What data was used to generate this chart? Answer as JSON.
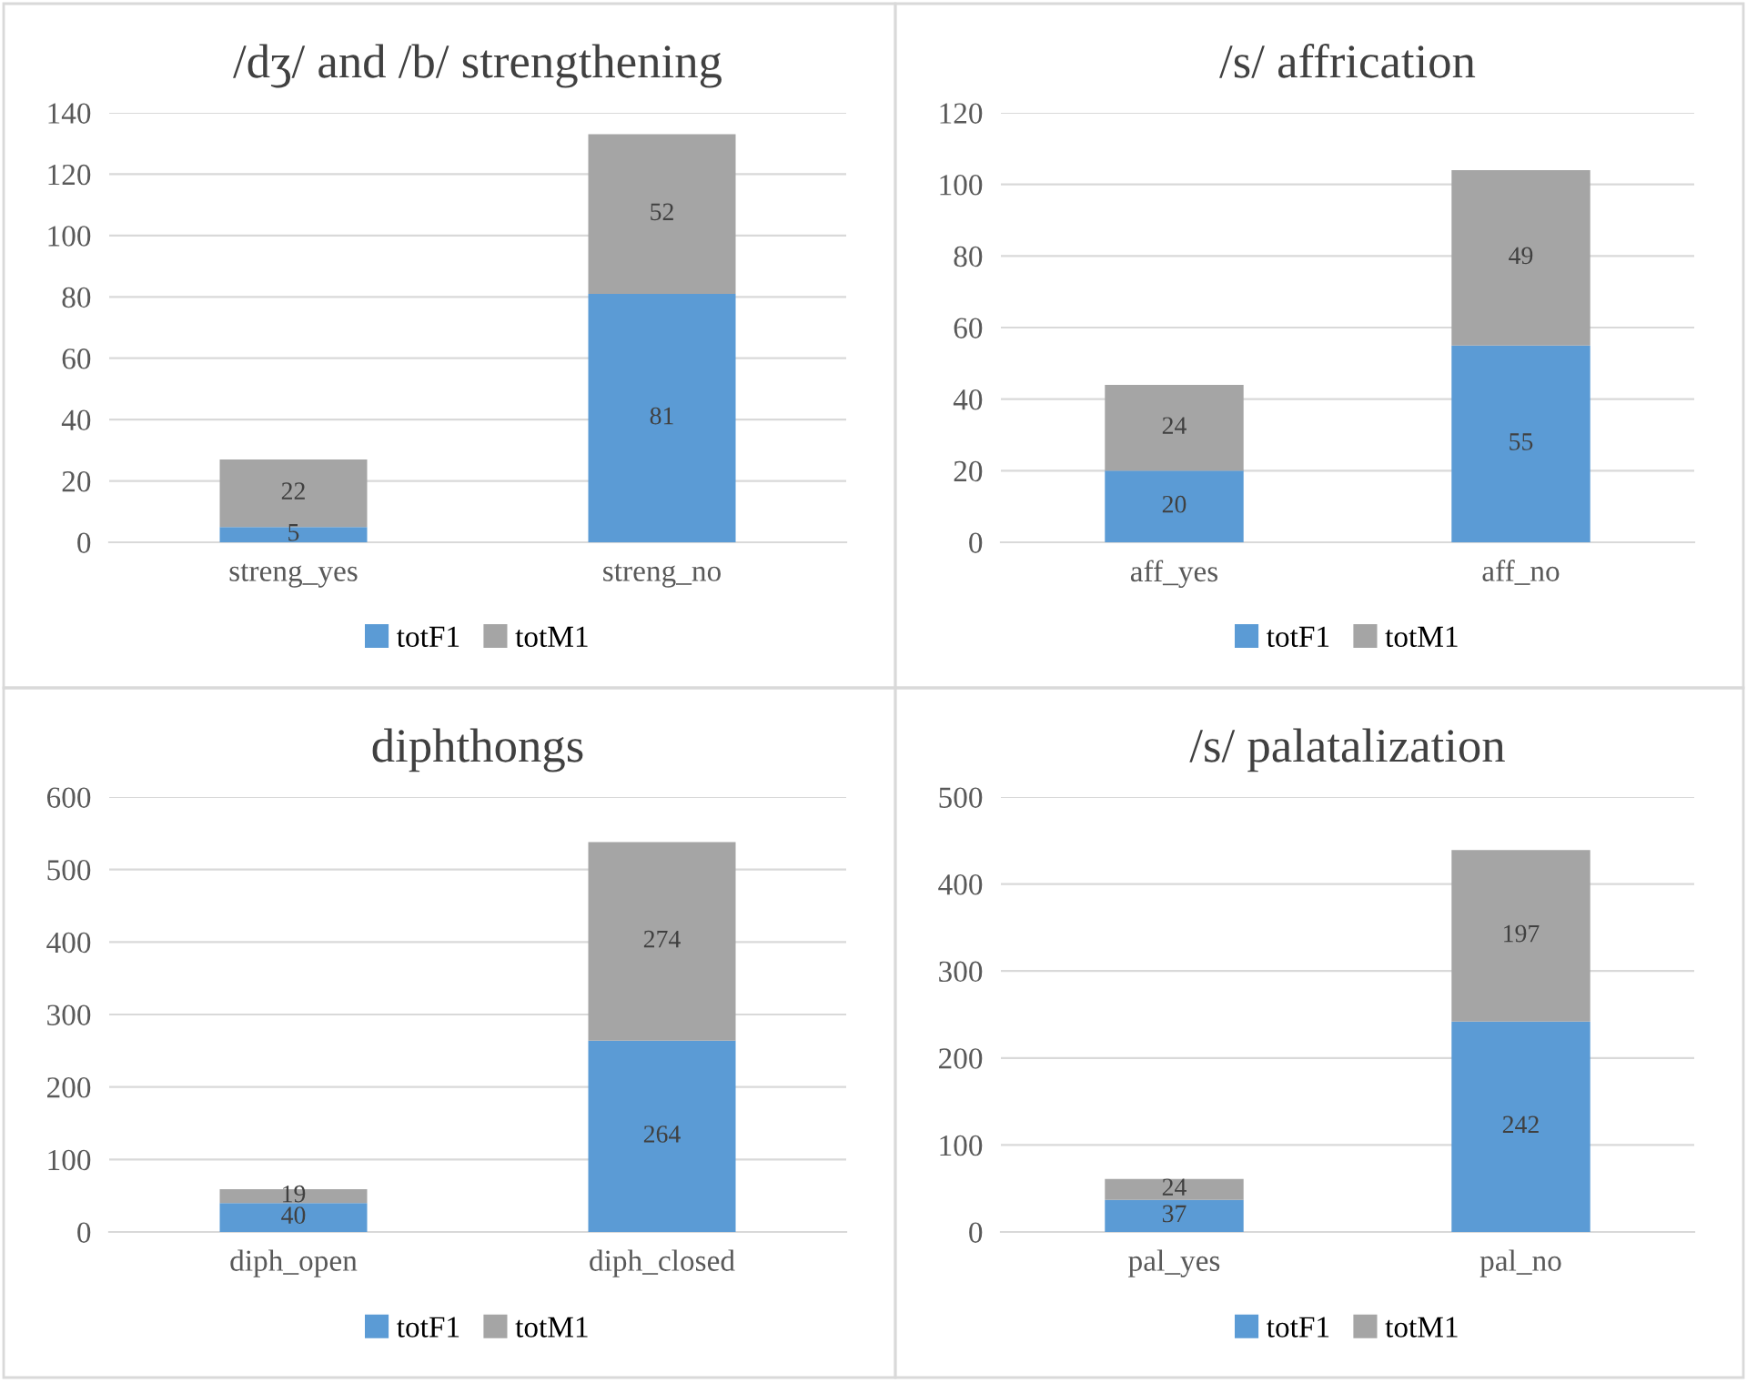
{
  "chart_data": [
    {
      "type": "bar",
      "title": "/dʒ/ and /b/ strengthening",
      "categories": [
        "streng_yes",
        "streng_no"
      ],
      "stacked": true,
      "data_labels": true,
      "grid": "y",
      "legend": "bottom",
      "ylim": [
        0,
        140
      ],
      "yticks": [
        0,
        20,
        40,
        60,
        80,
        100,
        120,
        140
      ],
      "series": [
        {
          "name": "totF1",
          "color": "#5b9bd5",
          "values": [
            5,
            81
          ]
        },
        {
          "name": "totM1",
          "color": "#a5a5a5",
          "values": [
            22,
            52
          ]
        }
      ]
    },
    {
      "type": "bar",
      "title": "/s/ affrication",
      "categories": [
        "aff_yes",
        "aff_no"
      ],
      "stacked": true,
      "data_labels": true,
      "grid": "y",
      "legend": "bottom",
      "ylim": [
        0,
        120
      ],
      "yticks": [
        0,
        20,
        40,
        60,
        80,
        100,
        120
      ],
      "series": [
        {
          "name": "totF1",
          "color": "#5b9bd5",
          "values": [
            20,
            55
          ]
        },
        {
          "name": "totM1",
          "color": "#a5a5a5",
          "values": [
            24,
            49
          ]
        }
      ]
    },
    {
      "type": "bar",
      "title": "diphthongs",
      "categories": [
        "diph_open",
        "diph_closed"
      ],
      "stacked": true,
      "data_labels": true,
      "grid": "y",
      "legend": "bottom",
      "ylim": [
        0,
        600
      ],
      "yticks": [
        0,
        100,
        200,
        300,
        400,
        500,
        600
      ],
      "series": [
        {
          "name": "totF1",
          "color": "#5b9bd5",
          "values": [
            40,
            264
          ]
        },
        {
          "name": "totM1",
          "color": "#a5a5a5",
          "values": [
            19,
            274
          ]
        }
      ]
    },
    {
      "type": "bar",
      "title": "/s/ palatalization",
      "categories": [
        "pal_yes",
        "pal_no"
      ],
      "stacked": true,
      "data_labels": true,
      "grid": "y",
      "legend": "bottom",
      "ylim": [
        0,
        500
      ],
      "yticks": [
        0,
        100,
        200,
        300,
        400,
        500
      ],
      "series": [
        {
          "name": "totF1",
          "color": "#5b9bd5",
          "values": [
            37,
            242
          ]
        },
        {
          "name": "totM1",
          "color": "#a5a5a5",
          "values": [
            24,
            197
          ]
        }
      ]
    }
  ]
}
